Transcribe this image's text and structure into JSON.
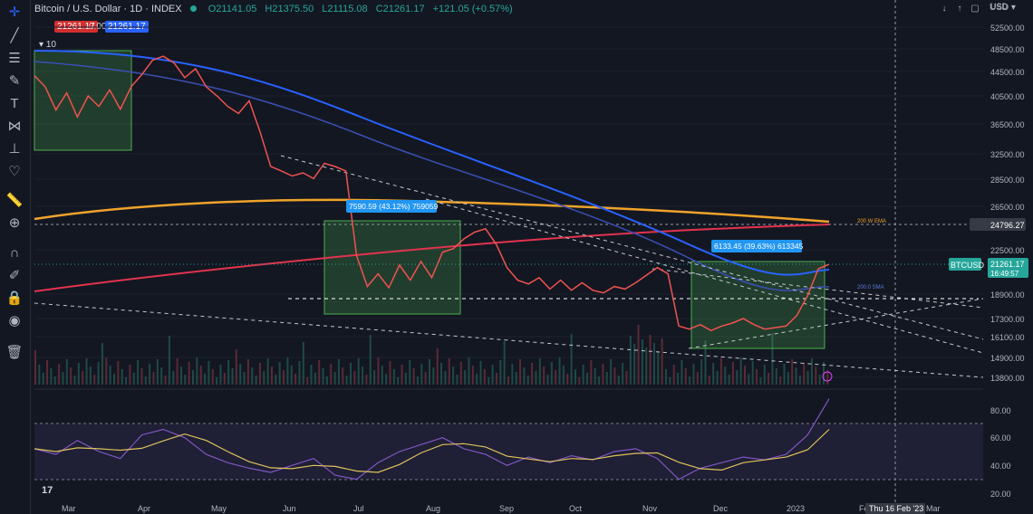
{
  "header": {
    "symbol": "Bitcoin / U.S. Dollar · 1D · INDEX",
    "o": "O21141.05",
    "h": "H21375.50",
    "l": "L21115.08",
    "c": "C21261.17",
    "chg": "+121.05 (+0.57%)",
    "sell": "21261.17",
    "spread": "0.00",
    "buy": "21261.17",
    "indicator_value": "10"
  },
  "currency": "USD",
  "chart_data": {
    "type": "line",
    "x_tick_labels": [
      "Mar",
      "Apr",
      "May",
      "Jun",
      "Jul",
      "Aug",
      "Sep",
      "Oct",
      "Nov",
      "Dec",
      "2023",
      "Feb",
      "Mar"
    ],
    "price_axis_labels": [
      "52500.00",
      "48500.00",
      "44500.00",
      "40500.00",
      "36500.00",
      "32500.00",
      "28500.00",
      "26500.00",
      "24796.27",
      "22500.00",
      "21261.17",
      "18900.00",
      "17300.00",
      "16100.00",
      "14900.00",
      "13800.00"
    ],
    "rsi_axis_labels": [
      "80.00",
      "60.00",
      "40.00",
      "20.00"
    ],
    "annotations": [
      "7590.59 (43.12%) 759059",
      "6133.45 (39.63%) 613345",
      "200 W EMA",
      "200.0 SMA"
    ],
    "last_price": {
      "symbol": "BTCUSD",
      "price": "21261.17",
      "countdown": "16:49:57"
    },
    "crosshair_level": "24796.27",
    "crosshair_time": "Thu 16 Feb '23",
    "colors": {
      "ema200w": "#f0a32a",
      "sma_fast": "#2962ff",
      "sma_slow": "#3b4fb5",
      "trend": "#e2334e",
      "rsi": "#7e57c2",
      "rsi_ma": "#e0c25d",
      "box": "#4caf50"
    },
    "price_points": [
      [
        0,
        43800
      ],
      [
        10,
        42000
      ],
      [
        20,
        38500
      ],
      [
        30,
        41000
      ],
      [
        40,
        37500
      ],
      [
        50,
        40500
      ],
      [
        60,
        39000
      ],
      [
        70,
        41500
      ],
      [
        80,
        38600
      ],
      [
        90,
        42000
      ],
      [
        100,
        44000
      ],
      [
        110,
        46500
      ],
      [
        120,
        47200
      ],
      [
        130,
        46000
      ],
      [
        140,
        43500
      ],
      [
        150,
        45000
      ],
      [
        160,
        42000
      ],
      [
        170,
        40500
      ],
      [
        180,
        39000
      ],
      [
        190,
        38000
      ],
      [
        200,
        39800
      ],
      [
        210,
        35500
      ],
      [
        220,
        30500
      ],
      [
        230,
        29800
      ],
      [
        240,
        29000
      ],
      [
        250,
        29500
      ],
      [
        260,
        28600
      ],
      [
        270,
        31000
      ],
      [
        280,
        30500
      ],
      [
        290,
        29800
      ],
      [
        300,
        22000
      ],
      [
        310,
        19500
      ],
      [
        320,
        20500
      ],
      [
        330,
        19400
      ],
      [
        340,
        21200
      ],
      [
        350,
        20000
      ],
      [
        360,
        21500
      ],
      [
        370,
        20200
      ],
      [
        380,
        22300
      ],
      [
        390,
        22600
      ],
      [
        400,
        23500
      ],
      [
        410,
        24100
      ],
      [
        420,
        24400
      ],
      [
        430,
        23000
      ],
      [
        440,
        21000
      ],
      [
        450,
        20000
      ],
      [
        460,
        19700
      ],
      [
        470,
        20200
      ],
      [
        480,
        19300
      ],
      [
        490,
        20000
      ],
      [
        500,
        19200
      ],
      [
        510,
        19800
      ],
      [
        520,
        19200
      ],
      [
        530,
        19000
      ],
      [
        540,
        19500
      ],
      [
        550,
        19300
      ],
      [
        560,
        19800
      ],
      [
        570,
        20400
      ],
      [
        580,
        21000
      ],
      [
        590,
        20500
      ],
      [
        600,
        16800
      ],
      [
        610,
        16600
      ],
      [
        620,
        16900
      ],
      [
        630,
        16500
      ],
      [
        640,
        16800
      ],
      [
        650,
        17000
      ],
      [
        660,
        17300
      ],
      [
        670,
        16900
      ],
      [
        680,
        16600
      ],
      [
        690,
        16700
      ],
      [
        700,
        16800
      ],
      [
        710,
        17500
      ],
      [
        720,
        18800
      ],
      [
        730,
        20900
      ],
      [
        740,
        21261
      ]
    ],
    "rsi_points": [
      [
        0,
        52
      ],
      [
        20,
        48
      ],
      [
        40,
        58
      ],
      [
        60,
        50
      ],
      [
        80,
        45
      ],
      [
        100,
        62
      ],
      [
        120,
        66
      ],
      [
        140,
        60
      ],
      [
        160,
        48
      ],
      [
        180,
        42
      ],
      [
        200,
        38
      ],
      [
        220,
        35
      ],
      [
        240,
        40
      ],
      [
        260,
        45
      ],
      [
        280,
        33
      ],
      [
        300,
        30
      ],
      [
        320,
        42
      ],
      [
        340,
        50
      ],
      [
        360,
        55
      ],
      [
        380,
        60
      ],
      [
        400,
        52
      ],
      [
        420,
        48
      ],
      [
        440,
        40
      ],
      [
        460,
        46
      ],
      [
        480,
        42
      ],
      [
        500,
        47
      ],
      [
        520,
        44
      ],
      [
        540,
        50
      ],
      [
        560,
        52
      ],
      [
        580,
        45
      ],
      [
        600,
        30
      ],
      [
        620,
        38
      ],
      [
        640,
        42
      ],
      [
        660,
        46
      ],
      [
        680,
        44
      ],
      [
        700,
        48
      ],
      [
        720,
        62
      ],
      [
        740,
        88
      ]
    ]
  }
}
